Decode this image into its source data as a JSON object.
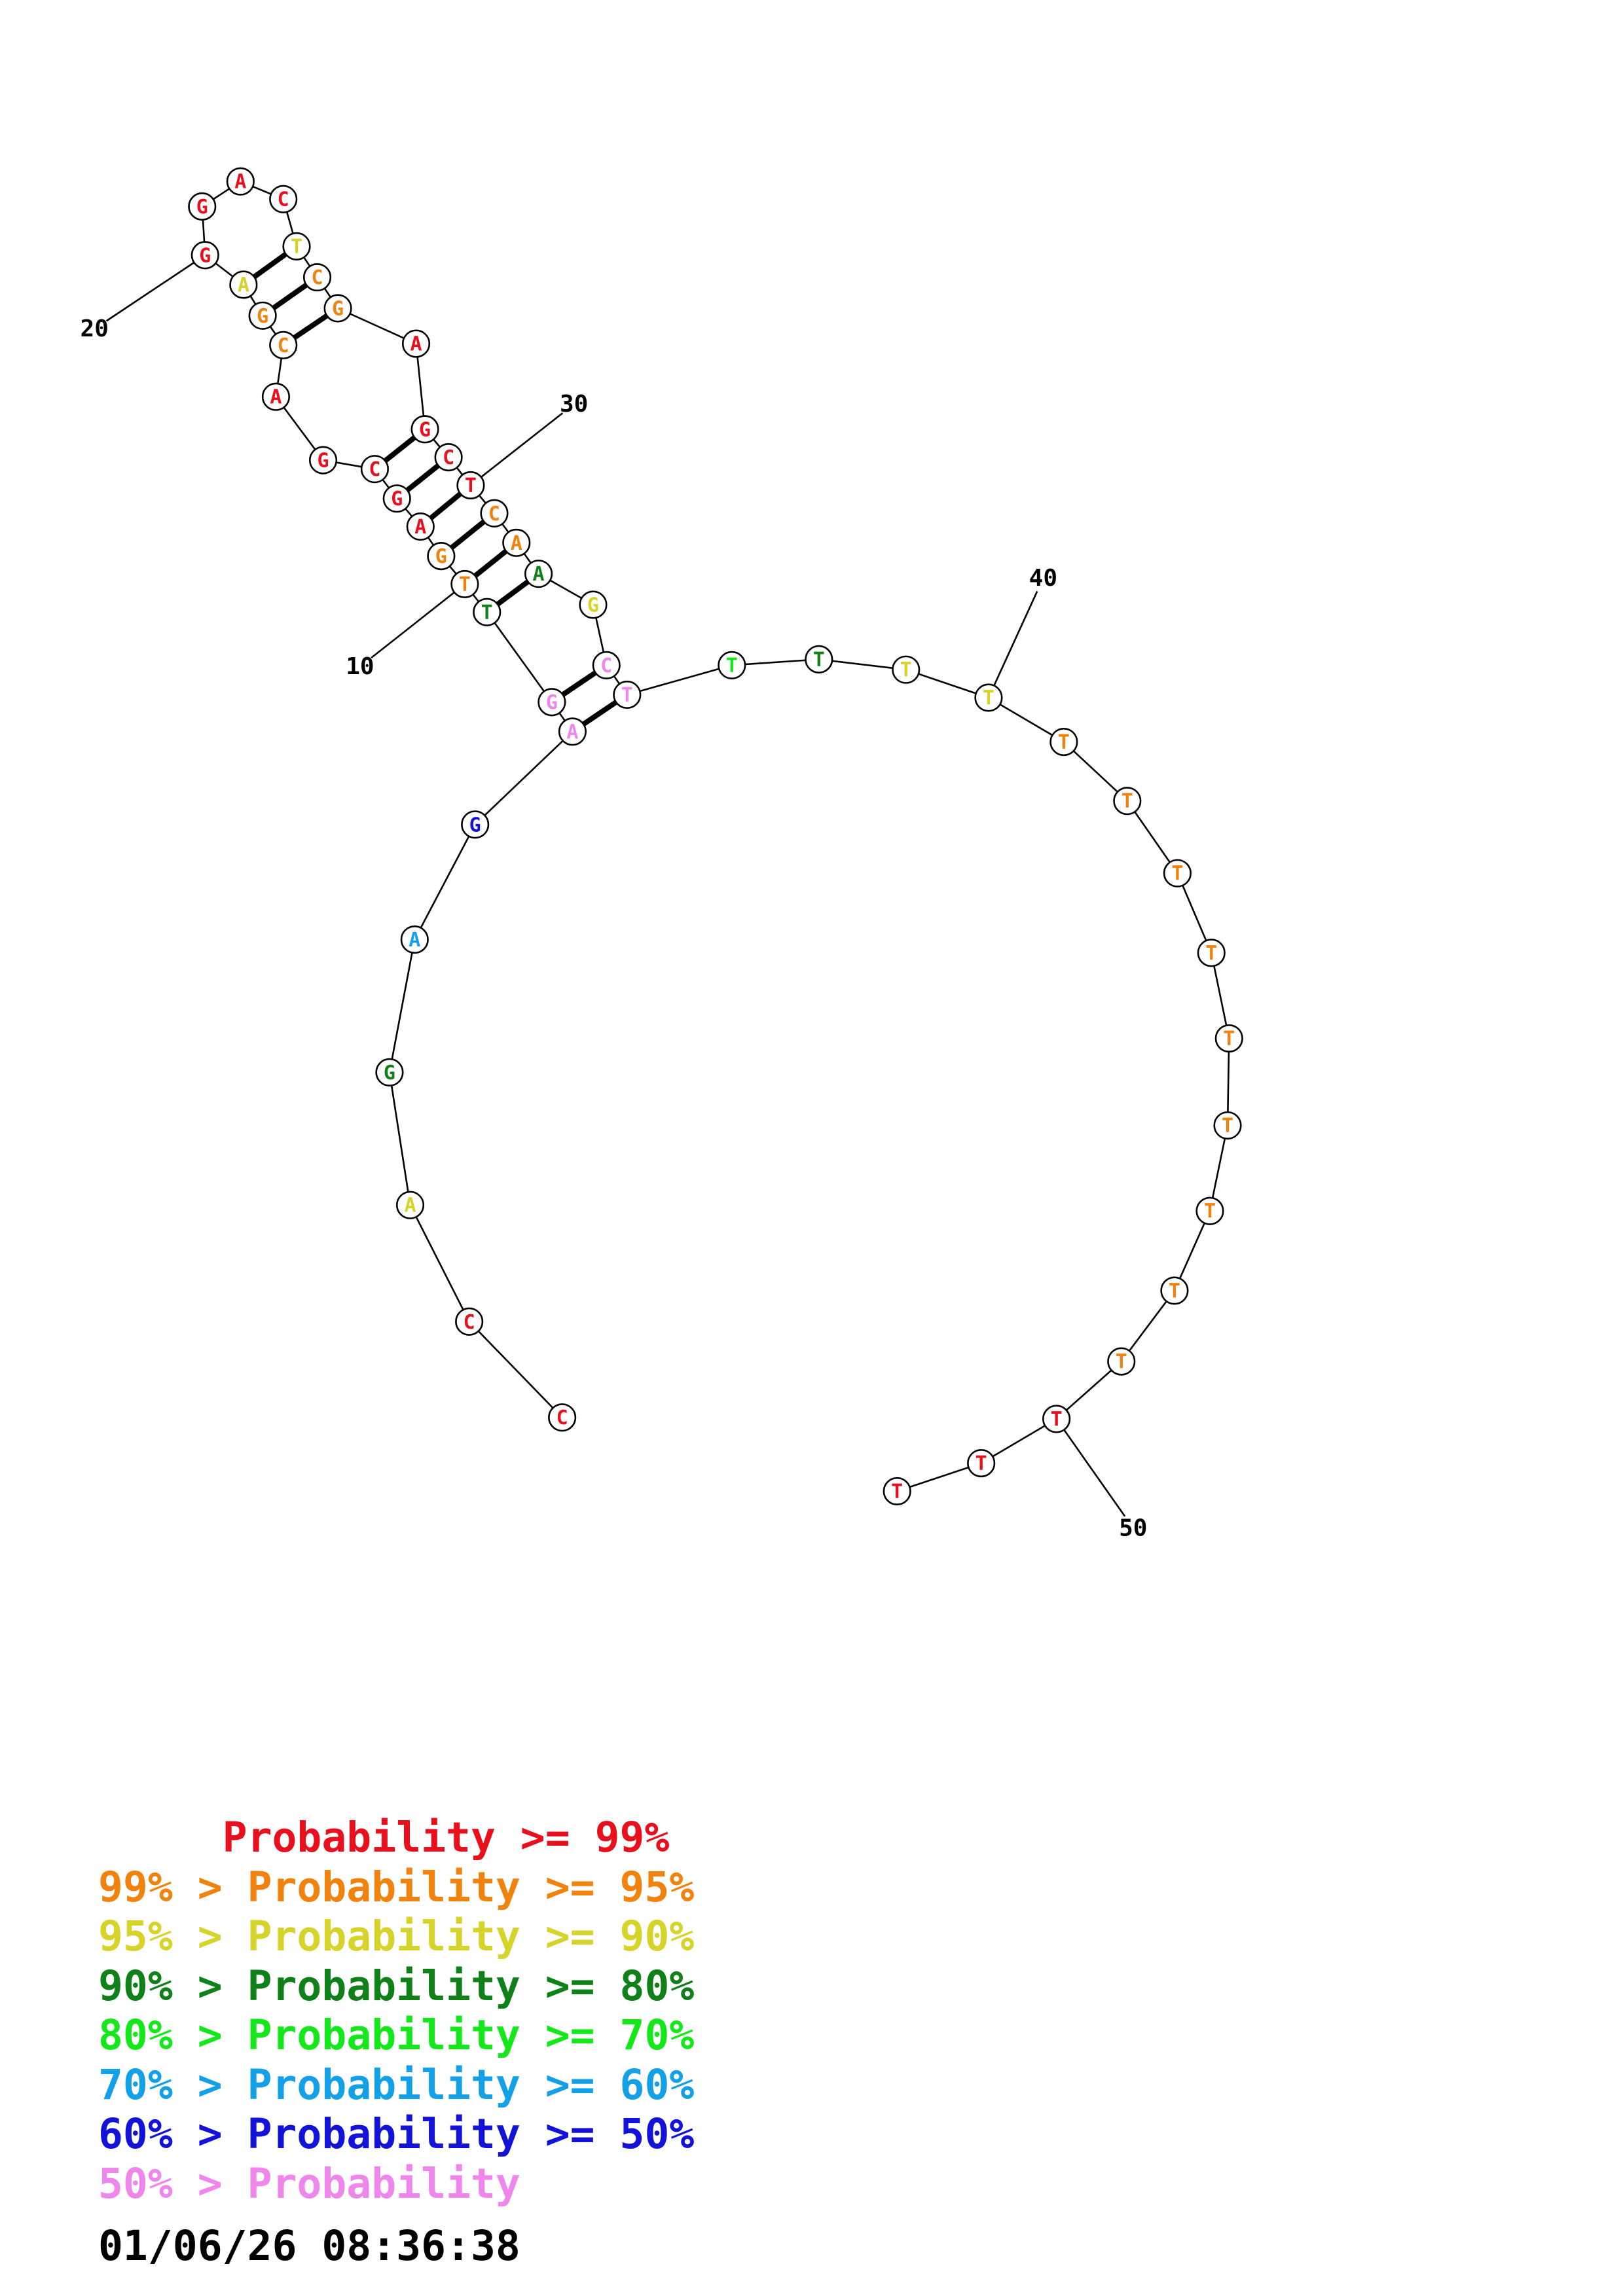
{
  "colors": {
    "red": "#e8101c",
    "orange": "#f0820e",
    "yellow": "#d6d42a",
    "darkgreen": "#108018",
    "green": "#14e81a",
    "skyblue": "#14a0e6",
    "blue": "#1212d8",
    "pink": "#ee86ec"
  },
  "nucleotides": [
    {
      "n": 1,
      "base": "C",
      "color": "red"
    },
    {
      "n": 2,
      "base": "C",
      "color": "red"
    },
    {
      "n": 3,
      "base": "A",
      "color": "yellow"
    },
    {
      "n": 4,
      "base": "G",
      "color": "darkgreen"
    },
    {
      "n": 5,
      "base": "A",
      "color": "skyblue"
    },
    {
      "n": 6,
      "base": "G",
      "color": "blue"
    },
    {
      "n": 7,
      "base": "A",
      "color": "pink"
    },
    {
      "n": 8,
      "base": "G",
      "color": "pink"
    },
    {
      "n": 9,
      "base": "T",
      "color": "darkgreen"
    },
    {
      "n": 10,
      "base": "T",
      "color": "orange"
    },
    {
      "n": 11,
      "base": "G",
      "color": "orange"
    },
    {
      "n": 12,
      "base": "A",
      "color": "red"
    },
    {
      "n": 13,
      "base": "G",
      "color": "red"
    },
    {
      "n": 14,
      "base": "C",
      "color": "red"
    },
    {
      "n": 15,
      "base": "G",
      "color": "red"
    },
    {
      "n": 16,
      "base": "A",
      "color": "red"
    },
    {
      "n": 17,
      "base": "C",
      "color": "orange"
    },
    {
      "n": 18,
      "base": "G",
      "color": "orange"
    },
    {
      "n": 19,
      "base": "A",
      "color": "yellow"
    },
    {
      "n": 20,
      "base": "G",
      "color": "red"
    },
    {
      "n": 21,
      "base": "G",
      "color": "red"
    },
    {
      "n": 22,
      "base": "A",
      "color": "red"
    },
    {
      "n": 23,
      "base": "C",
      "color": "red"
    },
    {
      "n": 24,
      "base": "T",
      "color": "yellow"
    },
    {
      "n": 25,
      "base": "C",
      "color": "orange"
    },
    {
      "n": 26,
      "base": "G",
      "color": "orange"
    },
    {
      "n": 27,
      "base": "A",
      "color": "red"
    },
    {
      "n": 28,
      "base": "G",
      "color": "red"
    },
    {
      "n": 29,
      "base": "C",
      "color": "red"
    },
    {
      "n": 30,
      "base": "T",
      "color": "red"
    },
    {
      "n": 31,
      "base": "C",
      "color": "orange"
    },
    {
      "n": 32,
      "base": "A",
      "color": "orange"
    },
    {
      "n": 33,
      "base": "A",
      "color": "darkgreen"
    },
    {
      "n": 34,
      "base": "G",
      "color": "yellow"
    },
    {
      "n": 35,
      "base": "C",
      "color": "pink"
    },
    {
      "n": 36,
      "base": "T",
      "color": "pink"
    },
    {
      "n": 37,
      "base": "T",
      "color": "green"
    },
    {
      "n": 38,
      "base": "T",
      "color": "darkgreen"
    },
    {
      "n": 39,
      "base": "T",
      "color": "yellow"
    },
    {
      "n": 40,
      "base": "T",
      "color": "yellow"
    },
    {
      "n": 41,
      "base": "T",
      "color": "orange"
    },
    {
      "n": 42,
      "base": "T",
      "color": "orange"
    },
    {
      "n": 43,
      "base": "T",
      "color": "orange"
    },
    {
      "n": 44,
      "base": "T",
      "color": "orange"
    },
    {
      "n": 45,
      "base": "T",
      "color": "orange"
    },
    {
      "n": 46,
      "base": "T",
      "color": "orange"
    },
    {
      "n": 47,
      "base": "T",
      "color": "orange"
    },
    {
      "n": 48,
      "base": "T",
      "color": "orange"
    },
    {
      "n": 49,
      "base": "T",
      "color": "orange"
    },
    {
      "n": 50,
      "base": "T",
      "color": "red"
    },
    {
      "n": 51,
      "base": "T",
      "color": "red"
    },
    {
      "n": 52,
      "base": "T",
      "color": "red"
    }
  ],
  "pairs": [
    [
      7,
      36
    ],
    [
      8,
      35
    ],
    [
      9,
      33
    ],
    [
      10,
      32
    ],
    [
      11,
      31
    ],
    [
      12,
      30
    ],
    [
      13,
      29
    ],
    [
      14,
      28
    ],
    [
      17,
      26
    ],
    [
      18,
      25
    ],
    [
      19,
      24
    ]
  ],
  "position_labels": [
    {
      "n": 10,
      "text": "10"
    },
    {
      "n": 20,
      "text": "20"
    },
    {
      "n": 30,
      "text": "30"
    },
    {
      "n": 40,
      "text": "40"
    },
    {
      "n": 50,
      "text": "50"
    }
  ],
  "legend": [
    {
      "text": "     Probability >= 99%",
      "color": "red"
    },
    {
      "text": "99% > Probability >= 95%",
      "color": "orange"
    },
    {
      "text": "95% > Probability >= 90%",
      "color": "yellow"
    },
    {
      "text": "90% > Probability >= 80%",
      "color": "darkgreen"
    },
    {
      "text": "80% > Probability >= 70%",
      "color": "green"
    },
    {
      "text": "70% > Probability >= 60%",
      "color": "skyblue"
    },
    {
      "text": "60% > Probability >= 50%",
      "color": "blue"
    },
    {
      "text": "50% > Probability",
      "color": "pink"
    }
  ],
  "timestamp": "01/06/26 08:36:38"
}
